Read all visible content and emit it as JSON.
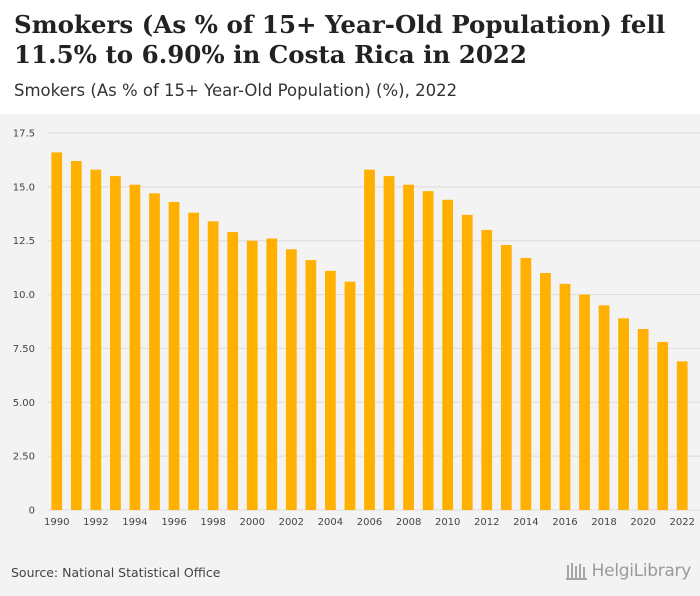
{
  "header": {
    "title": "Smokers (As % of 15+ Year-Old Population) fell 11.5% to 6.90% in Costa Rica in 2022",
    "subtitle": "Smokers (As % of 15+ Year-Old Population) (%), 2022"
  },
  "footer": {
    "source": "Source: National Statistical Office",
    "logo_text": "HelgiLibrary"
  },
  "colors": {
    "bar": "#ffb000",
    "grid": "#dcdcdc",
    "plot_background": "#f3f3f3"
  },
  "chart_data": {
    "type": "bar",
    "x": [
      1990,
      1991,
      1992,
      1993,
      1994,
      1995,
      1996,
      1997,
      1998,
      1999,
      2000,
      2001,
      2002,
      2003,
      2004,
      2005,
      2006,
      2007,
      2008,
      2009,
      2010,
      2011,
      2012,
      2013,
      2014,
      2015,
      2016,
      2017,
      2018,
      2019,
      2020,
      2021,
      2022
    ],
    "values": [
      16.6,
      16.2,
      15.8,
      15.5,
      15.1,
      14.7,
      14.3,
      13.8,
      13.4,
      12.9,
      12.5,
      12.6,
      12.1,
      11.6,
      11.1,
      10.6,
      15.8,
      15.5,
      15.1,
      14.8,
      14.4,
      13.7,
      13.0,
      12.3,
      11.7,
      11.0,
      10.5,
      10.0,
      9.5,
      8.9,
      8.4,
      7.8,
      6.9
    ],
    "x_tick_labels": [
      "1990",
      "1992",
      "1994",
      "1996",
      "1998",
      "2000",
      "2002",
      "2004",
      "2006",
      "2008",
      "2010",
      "2012",
      "2014",
      "2016",
      "2018",
      "2020",
      "2022"
    ],
    "y_tick_labels": [
      "0",
      "2.50",
      "5.00",
      "7.50",
      "10.0",
      "12.5",
      "15.0",
      "17.5"
    ],
    "y_ticks": [
      0,
      2.5,
      5,
      7.5,
      10,
      12.5,
      15,
      17.5
    ],
    "ylim": [
      0,
      17.5
    ],
    "xlabel": "",
    "ylabel": "",
    "grid": true,
    "legend": "none"
  }
}
